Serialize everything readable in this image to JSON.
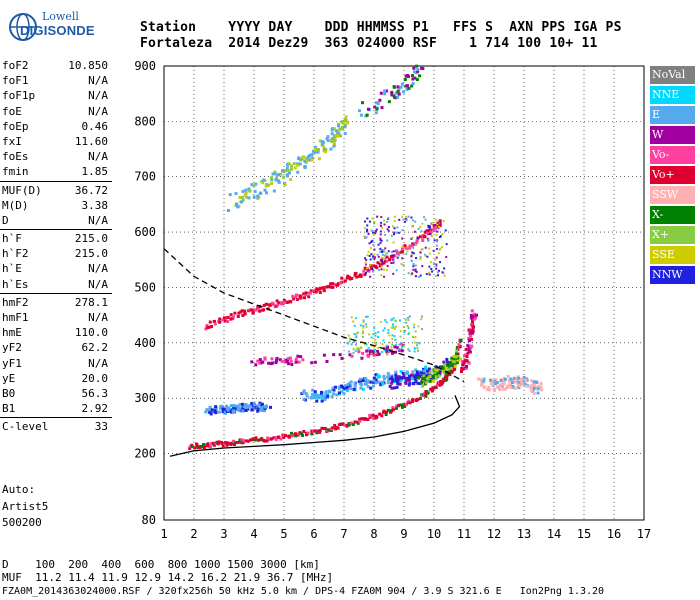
{
  "logo": {
    "top": "Lowell",
    "bottom": "DIGISONDE"
  },
  "header": {
    "line1": "Station    YYYY DAY    DDD HHMMSS P1   FFS S  AXN PPS IGA PS",
    "line2": "Fortaleza  2014 Dez29  363 024000 RSF    1 714 100 10+ 11"
  },
  "params": [
    [
      {
        "k": "foF2",
        "v": "10.850"
      },
      {
        "k": "foF1",
        "v": "N/A"
      },
      {
        "k": "foF1p",
        "v": "N/A"
      },
      {
        "k": "foE",
        "v": "N/A"
      },
      {
        "k": "foEp",
        "v": "0.46"
      },
      {
        "k": "fxI",
        "v": "11.60"
      },
      {
        "k": "foEs",
        "v": "N/A"
      },
      {
        "k": "fmin",
        "v": "1.85"
      }
    ],
    [
      {
        "k": "MUF(D)",
        "v": "36.72"
      },
      {
        "k": "M(D)",
        "v": "3.38"
      },
      {
        "k": "D",
        "v": "N/A"
      }
    ],
    [
      {
        "k": "h`F",
        "v": "215.0"
      },
      {
        "k": "h`F2",
        "v": "215.0"
      },
      {
        "k": "h`E",
        "v": "N/A"
      },
      {
        "k": "h`Es",
        "v": "N/A"
      }
    ],
    [
      {
        "k": "hmF2",
        "v": "278.1"
      },
      {
        "k": "hmF1",
        "v": "N/A"
      },
      {
        "k": "hmE",
        "v": "110.0"
      },
      {
        "k": "yF2",
        "v": "62.2"
      },
      {
        "k": "yF1",
        "v": "N/A"
      },
      {
        "k": "yE",
        "v": "20.0"
      },
      {
        "k": "B0",
        "v": "56.3"
      },
      {
        "k": "B1",
        "v": "2.92"
      }
    ],
    [
      {
        "k": "C-level",
        "v": "33"
      }
    ]
  ],
  "auto": {
    "l1": "Auto:",
    "l2": "Artist5",
    "l3": "500200"
  },
  "legend": [
    {
      "label": "NoVal",
      "color": "#808080"
    },
    {
      "label": "NNE",
      "color": "#00d8ff"
    },
    {
      "label": "E",
      "color": "#55aaee"
    },
    {
      "label": "W",
      "color": "#a000a0"
    },
    {
      "label": "Vo-",
      "color": "#ff40a0"
    },
    {
      "label": "Vo+",
      "color": "#e00030"
    },
    {
      "label": "SSW",
      "color": "#ffb0b0"
    },
    {
      "label": "X-",
      "color": "#008000"
    },
    {
      "label": "X+",
      "color": "#88cc44"
    },
    {
      "label": "SSE",
      "color": "#cccc00"
    },
    {
      "label": "NNW",
      "color": "#2020e0"
    }
  ],
  "footer": {
    "d": "D    100  200  400  600  800 1000 1500 3000 [km]",
    "muf": "MUF  11.2 11.4 11.9 12.9 14.2 16.2 21.9 36.7 [MHz]",
    "info": "FZA0M_2014363024000.RSF / 320fx256h 50 kHz 5.0 km / DPS-4 FZA0M 904 / 3.9 S 321.6 E   Ion2Png 1.3.20"
  },
  "chart_data": {
    "type": "scatter",
    "xlim": [
      1,
      17
    ],
    "ylim": [
      80,
      900
    ],
    "xticks": [
      1,
      2,
      3,
      4,
      5,
      6,
      7,
      8,
      9,
      10,
      11,
      12,
      13,
      14,
      15,
      16,
      17
    ],
    "yticks": [
      80,
      200,
      300,
      400,
      500,
      600,
      700,
      800,
      900
    ],
    "trace_F2": {
      "color": "#e00030",
      "x": [
        1.8,
        2.5,
        3.5,
        4.5,
        5.5,
        6.5,
        7.5,
        8.5,
        9.5,
        10.2,
        10.6,
        10.85
      ],
      "y": [
        215,
        218,
        224,
        230,
        238,
        248,
        262,
        280,
        305,
        330,
        355,
        410
      ]
    },
    "trace_2hop": {
      "color": "#e00030",
      "x": [
        2.3,
        3.5,
        4.5,
        5.5,
        6.5,
        7.5,
        8.5,
        9.5,
        10.2
      ],
      "y": [
        432,
        455,
        470,
        486,
        505,
        528,
        556,
        590,
        620
      ]
    },
    "trace_3hop": {
      "color": "#55aaee",
      "x": [
        3.2,
        4.5,
        5.5,
        6.5,
        7.0
      ],
      "y": [
        655,
        690,
        725,
        765,
        800
      ]
    },
    "trace_4hop": {
      "color": "#55aaee",
      "x": [
        7.5,
        8.5,
        9.0,
        9.5
      ],
      "y": [
        820,
        850,
        870,
        895
      ]
    },
    "echo_E": {
      "color": "#55aaee",
      "x": [
        2.4,
        3.0,
        3.5,
        4.0,
        4.4
      ],
      "y": [
        280,
        282,
        285,
        288,
        284
      ]
    },
    "echo_mid": {
      "color": "#55aaee",
      "x": [
        5.6,
        6.2,
        6.8,
        7.4,
        8.0,
        8.6,
        9.2,
        9.7
      ],
      "y": [
        310,
        305,
        318,
        325,
        335,
        340,
        345,
        350
      ]
    },
    "echo_SSW": {
      "color": "#ffb0b0",
      "x": [
        11.5,
        12,
        12.5,
        13,
        13.5
      ],
      "y": [
        330,
        325,
        332,
        328,
        320
      ]
    },
    "echo_Vo": {
      "color": "#ff40a0",
      "x": [
        10.9,
        11.1,
        11.2,
        11.3
      ],
      "y": [
        360,
        380,
        420,
        450
      ]
    },
    "echo_W": {
      "color": "#a000a0",
      "x": [
        4,
        4.5,
        5,
        5.5,
        7.5,
        8,
        8.5,
        9
      ],
      "y": [
        365,
        370,
        368,
        372,
        380,
        385,
        390,
        395
      ]
    },
    "echo_NNW": {
      "color": "#2020e0",
      "x": [
        8.5,
        9,
        9.5,
        10,
        10.4
      ],
      "y": [
        330,
        335,
        340,
        350,
        365
      ]
    },
    "echo_X": {
      "color": "#008000",
      "x": [
        9.5,
        10,
        10.5,
        10.8
      ],
      "y": [
        330,
        345,
        362,
        380
      ]
    },
    "profile": {
      "color": "#000000",
      "x": [
        1.2,
        2,
        3,
        4,
        5,
        6,
        7,
        8,
        9,
        10,
        10.6,
        10.85,
        10.7
      ],
      "y": [
        195,
        205,
        210,
        213,
        216,
        220,
        224,
        230,
        240,
        255,
        270,
        285,
        305
      ]
    },
    "muf_curve": {
      "color": "#000000",
      "style": "dashed",
      "x": [
        1,
        2,
        3,
        4,
        5,
        6,
        7,
        8,
        9,
        10,
        11
      ],
      "y": [
        570,
        520,
        490,
        470,
        450,
        430,
        410,
        395,
        378,
        360,
        330
      ]
    }
  }
}
